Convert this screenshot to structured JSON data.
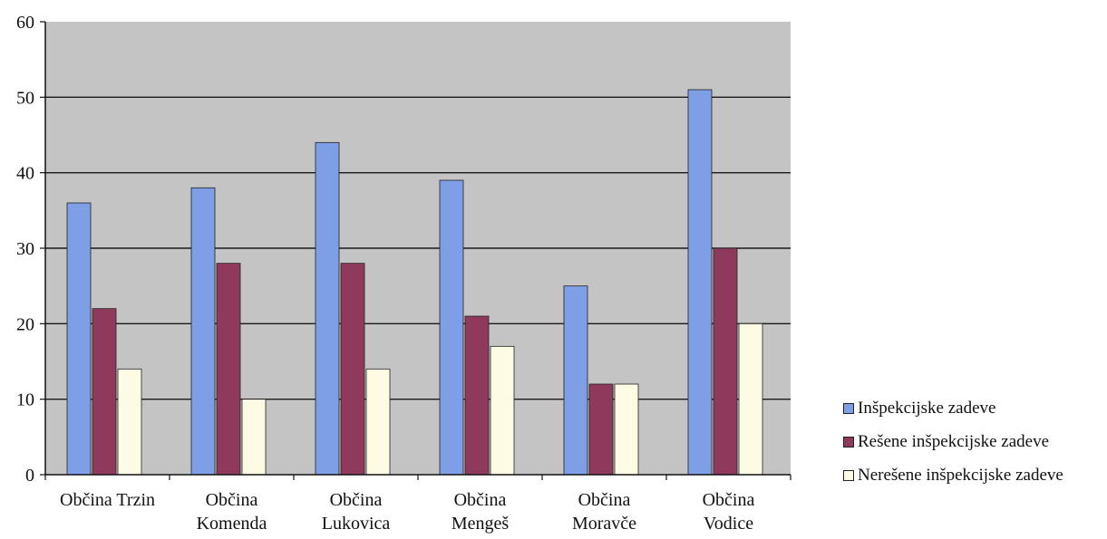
{
  "chart_data": {
    "type": "bar",
    "categories": [
      [
        "Občina Trzin"
      ],
      [
        "Občina",
        "Komenda"
      ],
      [
        "Občina",
        "Lukovica"
      ],
      [
        "Občina",
        "Mengeš"
      ],
      [
        "Občina",
        "Moravče"
      ],
      [
        "Občina",
        "Vodice"
      ]
    ],
    "series": [
      {
        "name": "Inšpekcijske zadeve",
        "color": "#7e9ee6",
        "values": [
          36,
          38,
          44,
          39,
          25,
          51
        ]
      },
      {
        "name": "Rešene inšpekcijske zadeve",
        "color": "#8f3a5c",
        "values": [
          22,
          28,
          28,
          21,
          12,
          30
        ]
      },
      {
        "name": "Nerešene inšpekcijske zadeve",
        "color": "#fdfbe4",
        "values": [
          14,
          10,
          14,
          17,
          12,
          20
        ]
      }
    ],
    "y_ticks": [
      "0",
      "10",
      "20",
      "30",
      "40",
      "50",
      "60"
    ],
    "ylim": [
      0,
      60
    ],
    "grid": true,
    "plot_background": "#c4c4c4",
    "legend_position": "right"
  }
}
